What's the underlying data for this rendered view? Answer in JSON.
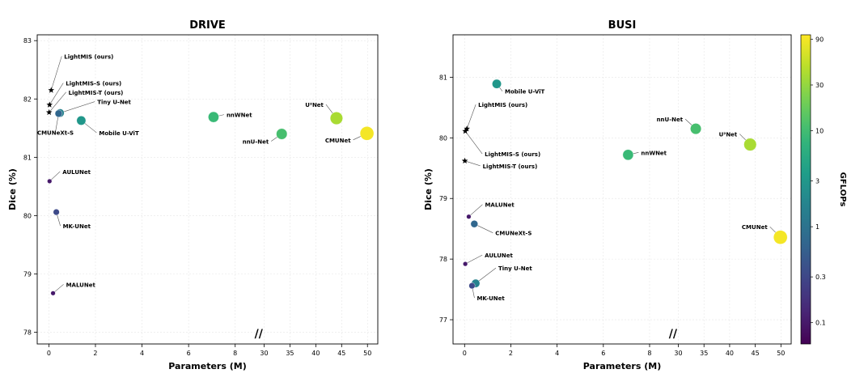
{
  "chart_data": [
    {
      "type": "scatter",
      "title": "DRIVE",
      "xlabel": "Parameters (M)",
      "ylabel": "Dice (%)",
      "ylim": [
        77.8,
        83.1
      ],
      "x_break": "//",
      "xticks_left": [
        "0",
        "2",
        "4",
        "6",
        "8"
      ],
      "xticks_right": [
        "30",
        "35",
        "40",
        "45",
        "50"
      ],
      "yticks": [
        "78",
        "79",
        "80",
        "81",
        "82",
        "83"
      ],
      "grid": true,
      "points": [
        {
          "label": "LightMIS (ours)",
          "params": 0.1,
          "dice": 82.15,
          "gflops": null,
          "marker": "star"
        },
        {
          "label": "LightMIS-S (ours)",
          "params": 0.03,
          "dice": 81.9,
          "gflops": null,
          "marker": "star"
        },
        {
          "label": "LightMIS-T (ours)",
          "params": 0.01,
          "dice": 81.77,
          "gflops": null,
          "marker": "star"
        },
        {
          "label": "Tiny U-Net",
          "params": 0.48,
          "dice": 81.76,
          "gflops": 1.6,
          "marker": "circle"
        },
        {
          "label": "CMUNeXt-S",
          "params": 0.42,
          "dice": 81.75,
          "gflops": 0.7,
          "marker": "circle"
        },
        {
          "label": "Mobile U-ViT",
          "params": 1.39,
          "dice": 81.63,
          "gflops": 3.0,
          "marker": "circle"
        },
        {
          "label": "nnWNet",
          "params": 7.07,
          "dice": 81.69,
          "gflops": 9.0,
          "marker": "circle"
        },
        {
          "label": "nnU-Net",
          "params": 33.4,
          "dice": 81.4,
          "gflops": 11.0,
          "marker": "circle"
        },
        {
          "label": "U²Net",
          "params": 44.0,
          "dice": 81.67,
          "gflops": 38.0,
          "marker": "circle"
        },
        {
          "label": "CMUNet",
          "params": 49.9,
          "dice": 81.41,
          "gflops": 90.0,
          "marker": "circle"
        },
        {
          "label": "AULUNet",
          "params": 0.03,
          "dice": 80.59,
          "gflops": 0.1,
          "marker": "circle"
        },
        {
          "label": "MK-UNet",
          "params": 0.32,
          "dice": 80.06,
          "gflops": 0.32,
          "marker": "circle"
        },
        {
          "label": "MALUNet",
          "params": 0.18,
          "dice": 78.67,
          "gflops": 0.1,
          "marker": "circle"
        }
      ]
    },
    {
      "type": "scatter",
      "title": "BUSI",
      "xlabel": "Parameters (M)",
      "ylabel": "Dice (%)",
      "ylim": [
        76.6,
        81.7
      ],
      "x_break": "//",
      "xticks_left": [
        "0",
        "2",
        "4",
        "6",
        "8"
      ],
      "xticks_right": [
        "30",
        "35",
        "40",
        "45",
        "50"
      ],
      "yticks": [
        "77",
        "78",
        "79",
        "80",
        "81"
      ],
      "grid": true,
      "points": [
        {
          "label": "Mobile U-ViT",
          "params": 1.39,
          "dice": 80.89,
          "gflops": 3.0,
          "marker": "circle"
        },
        {
          "label": "LightMIS (ours)",
          "params": 0.1,
          "dice": 80.15,
          "gflops": null,
          "marker": "star"
        },
        {
          "label": "LightMIS-S (ours)",
          "params": 0.03,
          "dice": 80.11,
          "gflops": null,
          "marker": "star"
        },
        {
          "label": "LightMIS-T (ours)",
          "params": 0.01,
          "dice": 79.62,
          "gflops": null,
          "marker": "star"
        },
        {
          "label": "nnU-Net",
          "params": 33.4,
          "dice": 80.15,
          "gflops": 11.0,
          "marker": "circle"
        },
        {
          "label": "U²Net",
          "params": 44.0,
          "dice": 79.89,
          "gflops": 38.0,
          "marker": "circle"
        },
        {
          "label": "nnWNet",
          "params": 7.07,
          "dice": 79.72,
          "gflops": 9.0,
          "marker": "circle"
        },
        {
          "label": "MALUNet",
          "params": 0.18,
          "dice": 78.7,
          "gflops": 0.1,
          "marker": "circle"
        },
        {
          "label": "CMUNeXt-S",
          "params": 0.42,
          "dice": 78.58,
          "gflops": 0.7,
          "marker": "circle"
        },
        {
          "label": "CMUNet",
          "params": 49.9,
          "dice": 78.36,
          "gflops": 90.0,
          "marker": "circle"
        },
        {
          "label": "AULUNet",
          "params": 0.03,
          "dice": 77.92,
          "gflops": 0.1,
          "marker": "circle"
        },
        {
          "label": "Tiny U-Net",
          "params": 0.48,
          "dice": 77.6,
          "gflops": 1.6,
          "marker": "circle"
        },
        {
          "label": "MK-UNet",
          "params": 0.32,
          "dice": 77.56,
          "gflops": 0.32,
          "marker": "circle"
        }
      ]
    }
  ],
  "colorbar": {
    "label": "GFLOPs",
    "scale": "log",
    "range": [
      0.06,
      100
    ],
    "ticks": [
      "0.1",
      "0.3",
      "1",
      "3",
      "10",
      "30",
      "90"
    ],
    "colormap": "viridis"
  }
}
